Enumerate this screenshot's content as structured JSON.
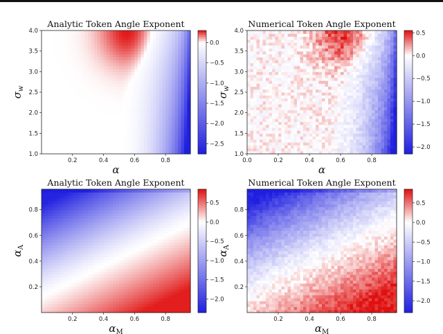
{
  "chart_data": [
    {
      "type": "heatmap",
      "title": "Analytic Token Angle Exponent",
      "xlabel": "α",
      "ylabel": "σ",
      "ylabel_sub": "w",
      "xlim": [
        0.0,
        0.96
      ],
      "ylim": [
        1.0,
        4.0
      ],
      "xticks": [
        "0.2",
        "0.4",
        "0.6",
        "0.8"
      ],
      "yticks": [
        "1.0",
        "1.5",
        "2.0",
        "2.5",
        "3.0",
        "3.5",
        "4.0"
      ],
      "colorbar": {
        "vmin": -2.75,
        "vmax": 0.3,
        "ticks": [
          "0.0",
          "−0.5",
          "−1.0",
          "−1.5",
          "−2.0",
          "−2.5"
        ]
      },
      "surface": {
        "kind": "alpha_sigma",
        "noise": 0,
        "peak_value": 0.3,
        "peak_at": [
          0.57,
          4.0
        ],
        "min_value": -2.75,
        "min_at": [
          0.96,
          1.0
        ]
      }
    },
    {
      "type": "heatmap",
      "title": "Numerical Token Angle Exponent",
      "xlabel": "α",
      "ylabel": "σ",
      "ylabel_sub": "w",
      "xlim": [
        0.0,
        0.96
      ],
      "ylim": [
        1.0,
        4.0
      ],
      "xticks": [
        "0.0",
        "0.2",
        "0.4",
        "0.6",
        "0.8"
      ],
      "yticks": [
        "1.0",
        "1.5",
        "2.0",
        "2.5",
        "3.0",
        "3.5",
        "4.0"
      ],
      "colorbar": {
        "vmin": -2.15,
        "vmax": 0.55,
        "ticks": [
          "0.5",
          "0.0",
          "−0.5",
          "−1.0",
          "−1.5",
          "−2.0"
        ]
      },
      "surface": {
        "kind": "alpha_sigma",
        "noise": 1,
        "peak_value": 0.5,
        "peak_at": [
          0.63,
          4.0
        ],
        "min_value": -2.1,
        "min_at": [
          0.96,
          1.0
        ]
      }
    },
    {
      "type": "heatmap",
      "title": "Analytic Token Angle Exponent",
      "xlabel": "α",
      "xlabel_sub": "M",
      "ylabel": "α",
      "ylabel_sub": "A",
      "xlim": [
        0.0,
        0.96
      ],
      "ylim": [
        0.0,
        0.96
      ],
      "xticks": [
        "0.2",
        "0.4",
        "0.6",
        "0.8"
      ],
      "yticks": [
        "0.2",
        "0.4",
        "0.6",
        "0.8"
      ],
      "colorbar": {
        "vmin": -2.35,
        "vmax": 0.85,
        "ticks": [
          "0.5",
          "0.0",
          "−0.5",
          "−1.0",
          "−1.5",
          "−2.0"
        ]
      },
      "surface": {
        "kind": "alphaM_alphaA",
        "noise": 0,
        "peak_value": 0.8,
        "peak_at": [
          0.96,
          0.0
        ],
        "min_value": -2.3,
        "min_at": [
          0.0,
          0.96
        ]
      }
    },
    {
      "type": "heatmap",
      "title": "Numerical Token Angle Exponent",
      "xlabel": "α",
      "xlabel_sub": "M",
      "ylabel": "α",
      "ylabel_sub": "A",
      "xlim": [
        0.0,
        0.96
      ],
      "ylim": [
        0.0,
        0.96
      ],
      "xticks": [
        "0.2",
        "0.4",
        "0.6",
        "0.8"
      ],
      "yticks": [
        "0.2",
        "0.4",
        "0.6",
        "0.8"
      ],
      "colorbar": {
        "vmin": -2.3,
        "vmax": 0.85,
        "ticks": [
          "0.5",
          "0.0",
          "−0.5",
          "−1.0",
          "−1.5",
          "−2.0"
        ]
      },
      "surface": {
        "kind": "alphaM_alphaA",
        "noise": 1,
        "peak_value": 0.8,
        "peak_at": [
          0.96,
          0.0
        ],
        "min_value": -2.25,
        "min_at": [
          0.0,
          0.96
        ]
      }
    }
  ],
  "colormap": {
    "low": "#1f1fe0",
    "mid": "#ffffff",
    "high": "#e01010"
  }
}
